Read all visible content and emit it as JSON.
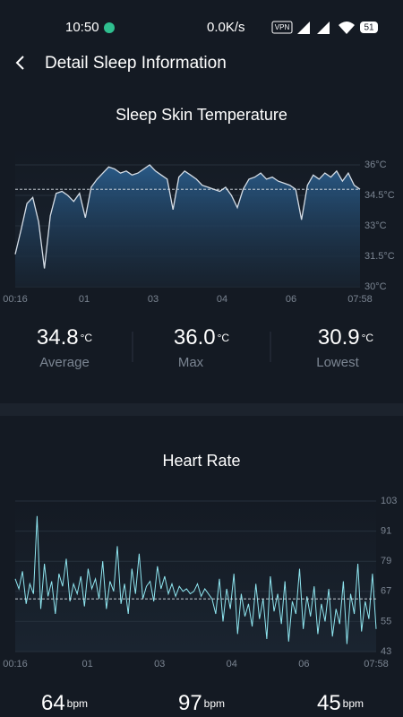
{
  "status_bar": {
    "time": "10:50",
    "network": "0.0K/s",
    "vpn": "VPN",
    "battery": "51"
  },
  "header": {
    "title": "Detail Sleep Information"
  },
  "temperature": {
    "chart_data": {
      "type": "area",
      "title": "Sleep Skin Temperature",
      "x_labels": [
        "00:16",
        "01",
        "03",
        "04",
        "06",
        "07:58"
      ],
      "values": [
        31.6,
        32.8,
        34.1,
        34.4,
        33.2,
        30.9,
        33.5,
        34.6,
        34.7,
        34.5,
        34.2,
        34.6,
        33.4,
        34.9,
        35.3,
        35.6,
        35.9,
        35.8,
        35.6,
        35.7,
        35.5,
        35.6,
        35.8,
        36.0,
        35.7,
        35.5,
        35.3,
        33.8,
        35.4,
        35.7,
        35.5,
        35.3,
        35.0,
        34.9,
        34.8,
        34.7,
        34.9,
        34.5,
        33.9,
        34.8,
        35.3,
        35.4,
        35.6,
        35.3,
        35.4,
        35.2,
        35.1,
        35.0,
        34.8,
        33.3,
        35.0,
        35.5,
        35.3,
        35.6,
        35.4,
        35.7,
        35.2,
        35.6,
        35.0,
        34.8
      ],
      "color": "#d5dde6",
      "ylim": [
        30,
        36
      ],
      "yticks": [
        {
          "value": 30,
          "label": "30°C"
        },
        {
          "value": 31.5,
          "label": "31.5°C"
        },
        {
          "value": 33,
          "label": "33°C"
        },
        {
          "value": 34.5,
          "label": "34.5°C"
        },
        {
          "value": 36,
          "label": "36°C"
        }
      ],
      "grid": true
    },
    "stats": [
      {
        "value": "34.8",
        "unit": "°C",
        "label": "Average"
      },
      {
        "value": "36.0",
        "unit": "°C",
        "label": "Max"
      },
      {
        "value": "30.9",
        "unit": "°C",
        "label": "Lowest"
      }
    ]
  },
  "heart_rate": {
    "chart_data": {
      "type": "line",
      "title": "Heart Rate",
      "x_labels": [
        "00:16",
        "01",
        "03",
        "04",
        "06",
        "07:58"
      ],
      "values": [
        72,
        68,
        75,
        62,
        70,
        66,
        97,
        60,
        78,
        65,
        71,
        58,
        74,
        69,
        80,
        63,
        70,
        66,
        73,
        61,
        76,
        68,
        72,
        64,
        79,
        60,
        71,
        67,
        85,
        62,
        70,
        58,
        76,
        66,
        82,
        64,
        69,
        71,
        63,
        77,
        68,
        73,
        66,
        70,
        65,
        69,
        67,
        68,
        66,
        67,
        70,
        65,
        68,
        66,
        64,
        58,
        72,
        55,
        68,
        60,
        74,
        50,
        66,
        57,
        62,
        53,
        70,
        56,
        64,
        48,
        73,
        59,
        66,
        54,
        71,
        47,
        63,
        58,
        76,
        52,
        65,
        57,
        69,
        50,
        62,
        55,
        68,
        49,
        60,
        54,
        71,
        46,
        66,
        58,
        78,
        51,
        63,
        56,
        74,
        52
      ],
      "color": "#8fe6f0",
      "ylim": [
        43,
        103
      ],
      "yticks": [
        43,
        55,
        67,
        79,
        91,
        103
      ],
      "grid": true
    },
    "stats": [
      {
        "value": "64",
        "unit": "bpm"
      },
      {
        "value": "97",
        "unit": "bpm"
      },
      {
        "value": "45",
        "unit": "bpm"
      }
    ]
  }
}
